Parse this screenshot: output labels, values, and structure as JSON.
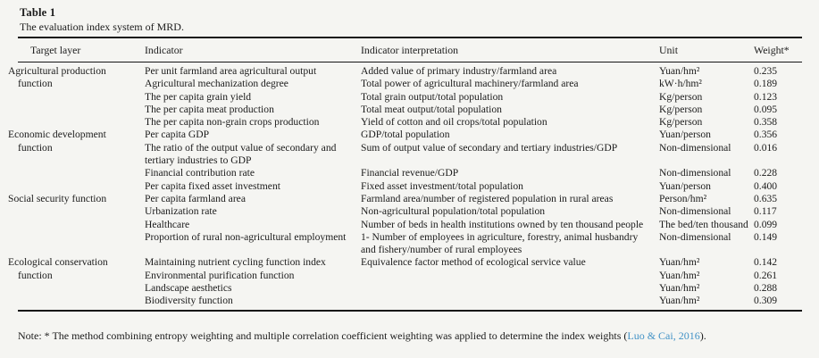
{
  "table": {
    "label": "Table 1",
    "caption": "The evaluation index system of MRD.",
    "columns": [
      "Target layer",
      "Indicator",
      "Indicator interpretation",
      "Unit",
      "Weight*"
    ],
    "sections": [
      {
        "target_layer": "Agricultural production function",
        "rows": [
          {
            "indicator": "Per unit farmland area agricultural output",
            "interpretation": "Added value of primary industry/farmland area",
            "unit": "Yuan/hm²",
            "weight": "0.235"
          },
          {
            "indicator": "Agricultural mechanization degree",
            "interpretation": "Total power of agricultural machinery/farmland area",
            "unit": "kW·h/hm²",
            "weight": "0.189"
          },
          {
            "indicator": "The per capita grain yield",
            "interpretation": "Total grain output/total population",
            "unit": "Kg/person",
            "weight": "0.123"
          },
          {
            "indicator": "The per capita meat production",
            "interpretation": "Total meat output/total population",
            "unit": "Kg/person",
            "weight": "0.095"
          },
          {
            "indicator": "The per capita non-grain crops production",
            "interpretation": "Yield of cotton and oil crops/total population",
            "unit": "Kg/person",
            "weight": "0.358"
          }
        ]
      },
      {
        "target_layer": "Economic development function",
        "rows": [
          {
            "indicator": "Per capita GDP",
            "interpretation": "GDP/total population",
            "unit": "Yuan/person",
            "weight": "0.356"
          },
          {
            "indicator": "The ratio of the output value of secondary and tertiary industries to GDP",
            "interpretation": "Sum of output value of secondary and tertiary industries/GDP",
            "unit": "Non-dimensional",
            "weight": "0.016"
          },
          {
            "indicator": "Financial contribution rate",
            "interpretation": "Financial revenue/GDP",
            "unit": "Non-dimensional",
            "weight": "0.228"
          },
          {
            "indicator": "Per capita fixed asset investment",
            "interpretation": "Fixed asset investment/total population",
            "unit": "Yuan/person",
            "weight": "0.400"
          }
        ]
      },
      {
        "target_layer": "Social security function",
        "rows": [
          {
            "indicator": "Per capita farmland area",
            "interpretation": "Farmland area/number of registered population in rural areas",
            "unit": "Person/hm²",
            "weight": "0.635"
          },
          {
            "indicator": "Urbanization rate",
            "interpretation": "Non-agricultural population/total population",
            "unit": "Non-dimensional",
            "weight": "0.117"
          },
          {
            "indicator": "Healthcare",
            "interpretation": "Number of beds in health institutions owned by ten thousand people",
            "unit": "The bed/ten thousand",
            "weight": "0.099"
          },
          {
            "indicator": "Proportion of rural non-agricultural employment",
            "interpretation": "1- Number of employees in agriculture, forestry, animal husbandry and fishery/number of rural employees",
            "unit": "Non-dimensional",
            "weight": "0.149"
          }
        ]
      },
      {
        "target_layer": "Ecological conservation function",
        "rows": [
          {
            "indicator": "Maintaining nutrient cycling function index",
            "interpretation": "Equivalence factor method of ecological service value",
            "unit": "Yuan/hm²",
            "weight": "0.142"
          },
          {
            "indicator": "Environmental purification function",
            "interpretation": "",
            "unit": "Yuan/hm²",
            "weight": "0.261"
          },
          {
            "indicator": "Landscape aesthetics",
            "interpretation": "",
            "unit": "Yuan/hm²",
            "weight": "0.288"
          },
          {
            "indicator": "Biodiversity function",
            "interpretation": "",
            "unit": "Yuan/hm²",
            "weight": "0.309"
          }
        ]
      }
    ]
  },
  "note": {
    "prefix": "Note: * The method combining entropy weighting and multiple correlation coefficient weighting was applied to determine the index weights (",
    "citation": "Luo & Cai, 2016",
    "suffix": ")."
  },
  "colors": {
    "background": "#f5f5f2",
    "text": "#1b1b1b",
    "rule": "#161616",
    "citation_link": "#4292c6"
  }
}
